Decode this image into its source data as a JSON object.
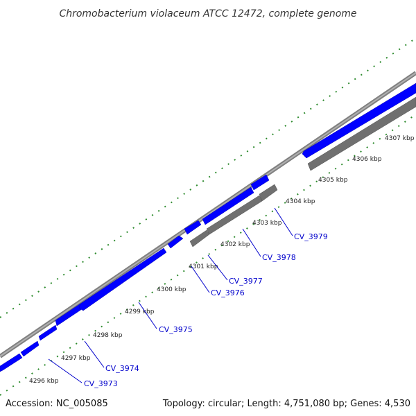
{
  "title": "Chromobacterium violaceum ATCC 12472, complete genome",
  "accession": "Accession: NC_005085",
  "topology": "Topology: circular; Length: 4,751,080 bp; Genes: 4,530",
  "tick_labels": [
    "4296 kbp",
    "4297 kbp",
    "4298 kbp",
    "4299 kbp",
    "4300 kbp",
    "4301 kbp",
    "4302 kbp",
    "4303 kbp",
    "4304 kbp",
    "4305 kbp",
    "4306 kbp",
    "4307 kbp"
  ],
  "gene_labels": [
    "CV_3973",
    "CV_3974",
    "CV_3975",
    "CV_3976",
    "CV_3977",
    "CV_3978",
    "CV_3979"
  ],
  "colors": {
    "forward_cds": "#0000ff",
    "reverse_cds": "#707070",
    "backbone": "#909090",
    "ticks": "#2e8b2e",
    "gene_label": "#0000cc",
    "label_line": "#0000cc"
  }
}
